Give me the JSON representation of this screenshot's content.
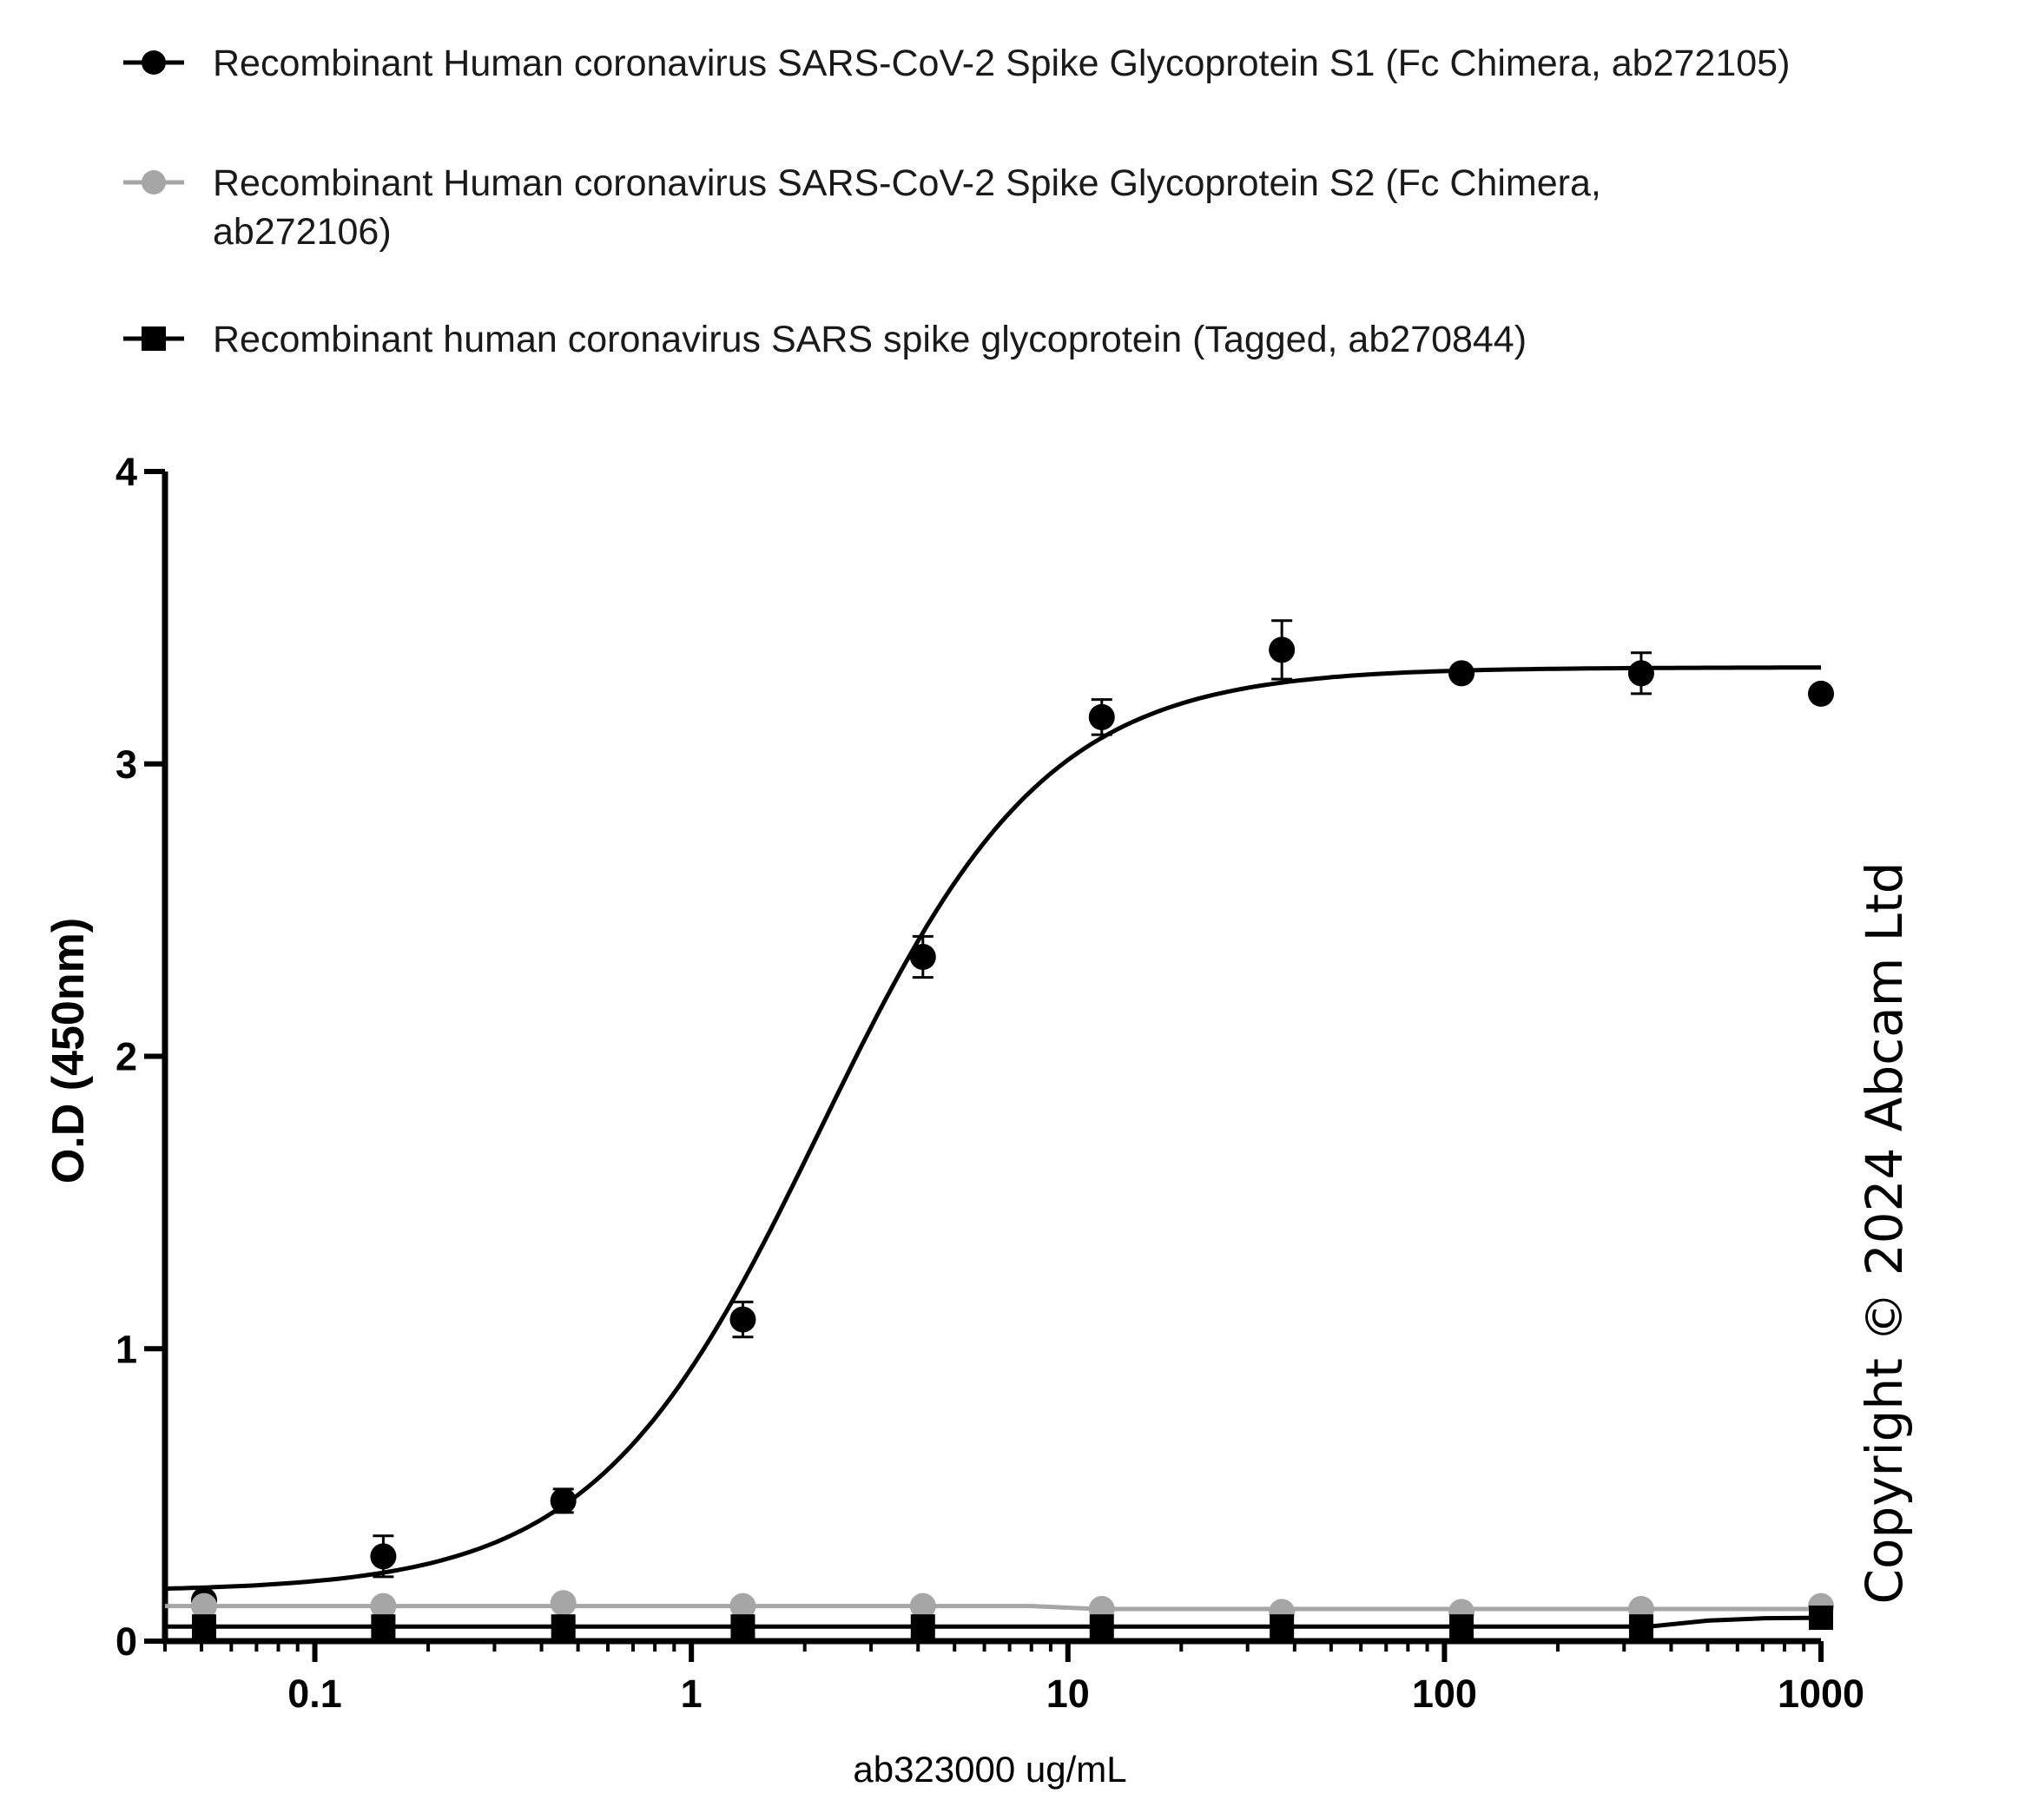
{
  "chart_data": {
    "type": "scatter",
    "xlabel": "ab323000 ug/mL",
    "ylabel": "O.D (450nm)",
    "x_scale": "log",
    "xlim": [
      0.04,
      1000
    ],
    "ylim": [
      0,
      4
    ],
    "x_ticks": [
      0.1,
      1,
      10,
      100,
      1000
    ],
    "x_tick_labels": [
      "0.1",
      "1",
      "10",
      "100",
      "1000"
    ],
    "y_ticks": [
      0,
      1,
      2,
      3,
      4
    ],
    "y_tick_labels": [
      "0",
      "1",
      "2",
      "3",
      "4"
    ],
    "legend_position": "top",
    "grid": false,
    "copyright": "Copyright ©  2024 Abcam Ltd",
    "series": [
      {
        "name": "Recombinant Human coronavirus SARS-CoV-2 Spike Glycoprotein S1 (Fc Chimera, ab272105)",
        "legend_lines": [
          "Recombinant Human coronavirus SARS-CoV-2 Spike Glycoprotein S1 (Fc Chimera, ab272105)"
        ],
        "marker": "circle",
        "color": "#000000",
        "x": [
          0.0508,
          0.152,
          0.457,
          1.37,
          4.12,
          12.3,
          37.0,
          111,
          333,
          1000
        ],
        "y": [
          0.14,
          0.29,
          0.48,
          1.1,
          2.34,
          3.16,
          3.39,
          3.31,
          3.31,
          3.24
        ],
        "error": [
          0.0,
          0.07,
          0.04,
          0.06,
          0.07,
          0.06,
          0.1,
          0.0,
          0.07,
          0.0
        ],
        "fit": {
          "bottom": 0.17,
          "top": 3.33,
          "ec50": 2.2,
          "hill": 1.45
        }
      },
      {
        "name": "Recombinant Human coronavirus SARS-CoV-2 Spike Glycoprotein S2 (Fc Chimera, ab272106)",
        "legend_lines": [
          "Recombinant Human coronavirus SARS-CoV-2 Spike Glycoprotein S2 (Fc Chimera,",
          "ab272106)"
        ],
        "marker": "circle",
        "color": "#a6a6a6",
        "x": [
          0.0508,
          0.152,
          0.457,
          1.37,
          4.12,
          12.3,
          37.0,
          111,
          333,
          1000
        ],
        "y": [
          0.12,
          0.12,
          0.13,
          0.12,
          0.12,
          0.11,
          0.1,
          0.1,
          0.11,
          0.12
        ],
        "error": [
          0,
          0,
          0,
          0,
          0,
          0,
          0,
          0,
          0,
          0
        ],
        "fit_x": [
          0.04,
          8,
          12,
          1000
        ],
        "fit_y": [
          0.12,
          0.12,
          0.11,
          0.11
        ]
      },
      {
        "name": "Recombinant human coronavirus SARS spike glycoprotein (Tagged, ab270844)",
        "legend_lines": [
          "Recombinant human coronavirus SARS spike glycoprotein (Tagged, ab270844)"
        ],
        "marker": "square",
        "color": "#000000",
        "x": [
          0.0508,
          0.152,
          0.457,
          1.37,
          4.12,
          12.3,
          37.0,
          111,
          333,
          1000
        ],
        "y": [
          0.05,
          0.05,
          0.05,
          0.05,
          0.05,
          0.05,
          0.05,
          0.05,
          0.05,
          0.08
        ],
        "error": [
          0,
          0,
          0,
          0,
          0,
          0,
          0,
          0,
          0,
          0
        ],
        "fit_x": [
          0.04,
          350,
          500,
          700,
          1000
        ],
        "fit_y": [
          0.05,
          0.05,
          0.07,
          0.078,
          0.08
        ]
      }
    ]
  }
}
